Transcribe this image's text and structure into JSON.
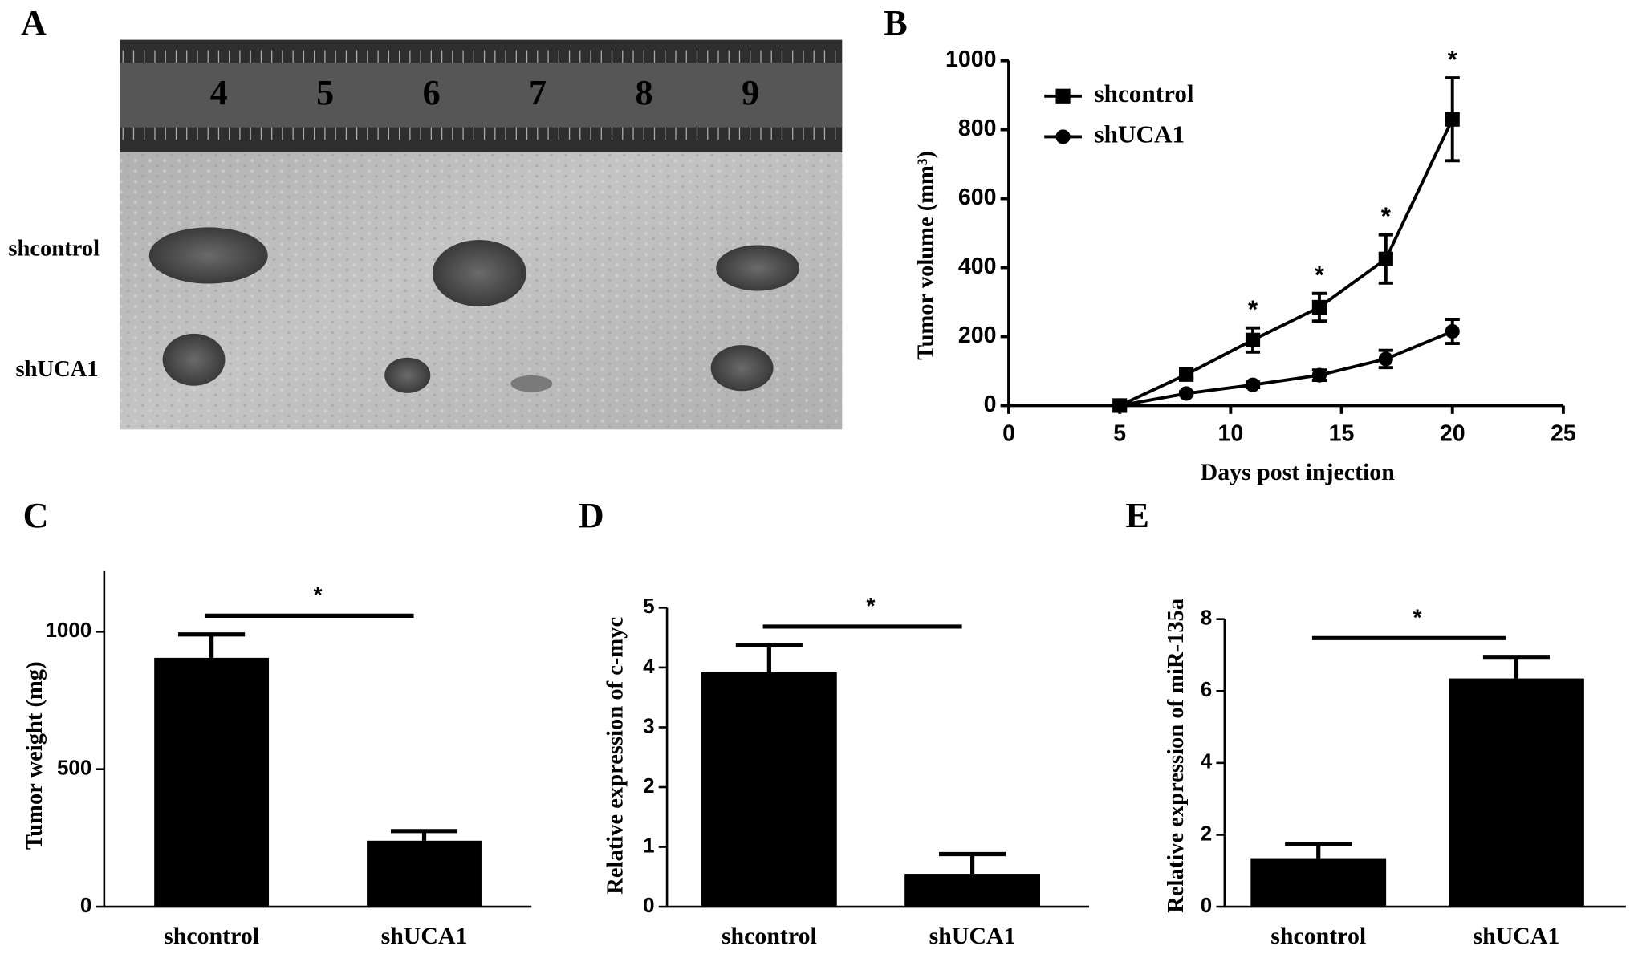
{
  "photo": {
    "panel_label": "A",
    "ruler_labels": [
      "4",
      "5",
      "6",
      "7",
      "8",
      "9"
    ],
    "row_labels": [
      "shcontrol",
      "shUCA1"
    ]
  },
  "chart_data": [
    {
      "type": "line",
      "panel_label": "B",
      "x_label": "Days post injection",
      "y_label": "Tumor  volume (mm³)",
      "x": [
        5,
        8,
        11,
        14,
        17,
        20
      ],
      "series": [
        {
          "name": "shcontrol",
          "color": "#000000",
          "marker": "square",
          "values": [
            0,
            90,
            190,
            285,
            425,
            830
          ],
          "errors": [
            0,
            10,
            35,
            40,
            70,
            120
          ]
        },
        {
          "name": "shUCA1",
          "color": "#000000",
          "marker": "circle",
          "values": [
            0,
            35,
            60,
            88,
            135,
            215
          ],
          "errors": [
            0,
            5,
            8,
            15,
            25,
            35
          ]
        }
      ],
      "annotations": [
        {
          "x": 11,
          "text": "*"
        },
        {
          "x": 14,
          "text": "*"
        },
        {
          "x": 17,
          "text": "*"
        },
        {
          "x": 20,
          "text": "*"
        }
      ],
      "xlim": [
        0,
        25
      ],
      "xticks": [
        0,
        5,
        10,
        15,
        20,
        25
      ],
      "ylim": [
        0,
        1000
      ],
      "yticks": [
        0,
        200,
        400,
        600,
        800,
        1000
      ],
      "legend": "upper left"
    },
    {
      "type": "bar",
      "panel_label": "C",
      "y_label": "Tumor  weight (mg)",
      "categories": [
        "shcontrol",
        "shUCA1"
      ],
      "values": [
        905,
        240
      ],
      "errors": [
        85,
        35
      ],
      "color": "#000000",
      "significance": "*",
      "ylim": [
        0,
        1220
      ],
      "yticks": [
        0,
        500,
        1000
      ]
    },
    {
      "type": "bar",
      "panel_label": "D",
      "y_label": "Relative  expression  of c-myc",
      "categories": [
        "shcontrol",
        "shUCA1"
      ],
      "values": [
        3.92,
        0.55
      ],
      "errors": [
        0.45,
        0.33
      ],
      "color": "#000000",
      "significance": "*",
      "ylim": [
        0,
        5
      ],
      "yticks": [
        0,
        1,
        2,
        3,
        4,
        5
      ]
    },
    {
      "type": "bar",
      "panel_label": "E",
      "y_label": "Relative  expression  of miR-135a",
      "categories": [
        "shcontrol",
        "shUCA1"
      ],
      "values": [
        1.35,
        6.35
      ],
      "errors": [
        0.4,
        0.6
      ],
      "color": "#000000",
      "significance": "*",
      "ylim": [
        0,
        8
      ],
      "yticks": [
        0,
        2,
        4,
        6,
        8
      ]
    }
  ]
}
